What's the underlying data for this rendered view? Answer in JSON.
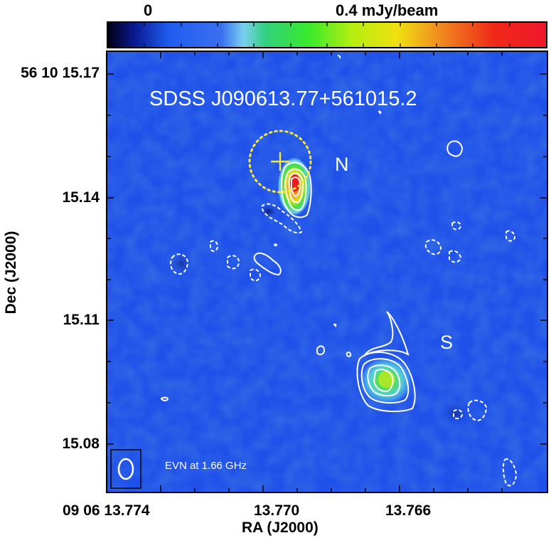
{
  "colorbar": {
    "label_zero": "0",
    "label_peak": "0.4 mJy/beam",
    "stops": [
      "#000010",
      "#0a1890",
      "#1f5cf0",
      "#3a70f0",
      "#7ad0f0",
      "#32d080",
      "#3aea2a",
      "#b8ee10",
      "#f0e010",
      "#f08820",
      "#f02818",
      "#f0182c"
    ]
  },
  "map": {
    "title": "SDSS J090613.77+561015.2",
    "label_north": "N",
    "label_south": "S",
    "caption": "EVN at 1.66 GHz",
    "background_color": "#1e4ee8",
    "contour_color": "#ffffff",
    "marker_color": "#f5e83a"
  },
  "axes": {
    "y_title": "Dec (J2000)",
    "x_title": "RA (J2000)",
    "y_ticks": [
      "56 10 15.17",
      "15.14",
      "15.11",
      "15.08"
    ],
    "x_ticks": [
      "09 06 13.774",
      "13.770",
      "13.766"
    ]
  }
}
